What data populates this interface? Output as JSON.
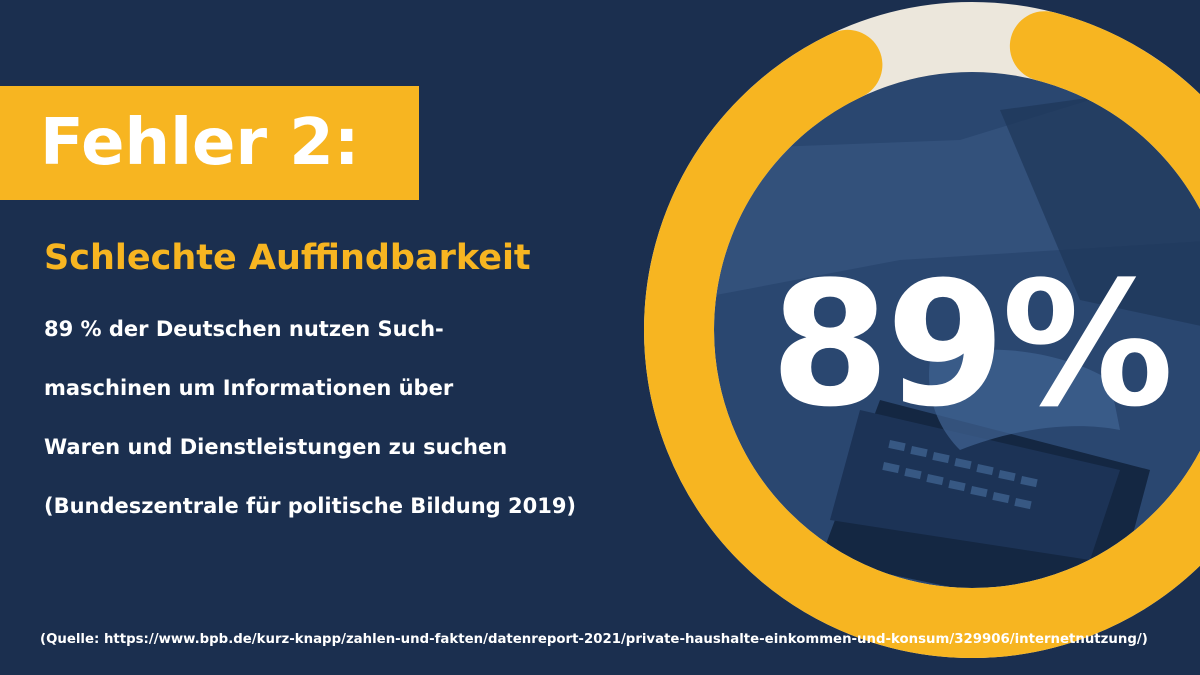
{
  "slide": {
    "title": "Fehler 2:",
    "subtitle": "Schlechte Auffindbarkeit",
    "body_lines": [
      "89 % der Deutschen nutzen Such-",
      "maschinen um Informationen über",
      "Waren und Dienstleistungen zu suchen",
      "(Bundeszentrale für politische Bildung 2019)"
    ],
    "big_number": "89%",
    "footer": "(Quelle: https://www.bpb.de/kurz-knapp/zahlen-und-fakten/datenreport-2021/private-haushalte-einkommen-und-konsum/329906/internetnutzung/)"
  },
  "gauge": {
    "percent": 89
  },
  "colors": {
    "background": "#1b2f4f",
    "accent": "#f7b521",
    "ring_track": "#ece7dc",
    "text": "#ffffff",
    "photo_overlay": "#2a4770"
  },
  "icons": {
    "photo": "hand-on-laptop-keyboard-photo"
  }
}
